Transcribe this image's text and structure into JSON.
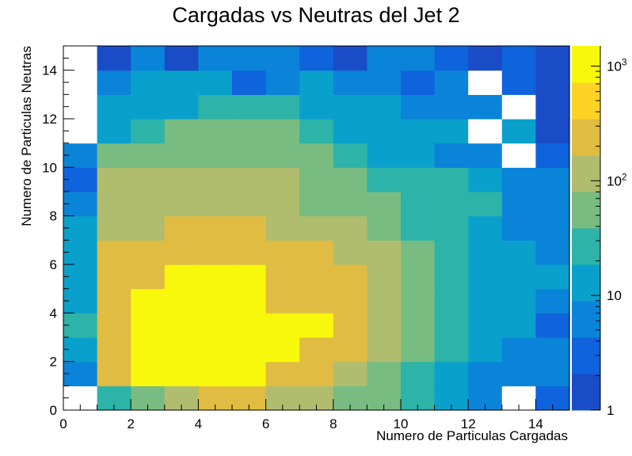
{
  "chart_data": {
    "type": "heatmap",
    "title": "Cargadas vs Neutras del Jet 2",
    "xlabel": "Numero de Particulas Cargadas",
    "ylabel": "Numero de Particulas Neutras",
    "xlim": [
      0,
      15
    ],
    "ylim": [
      0,
      15
    ],
    "x_ticks": [
      "0",
      "2",
      "4",
      "6",
      "8",
      "10",
      "12",
      "14"
    ],
    "y_ticks": [
      "0",
      "2",
      "4",
      "6",
      "8",
      "10",
      "12",
      "14"
    ],
    "color_scale": "log",
    "zlim": [
      1,
      1500
    ],
    "colorbar_ticks": [
      {
        "value": 1,
        "base": "1",
        "exp": ""
      },
      {
        "value": 10,
        "base": "10",
        "exp": ""
      },
      {
        "value": 100,
        "base": "10",
        "exp": "2"
      },
      {
        "value": 1000,
        "base": "10",
        "exp": "3"
      }
    ],
    "colors": [
      "#1a4cc8",
      "#0f63dc",
      "#0a84d8",
      "#0aa0cc",
      "#2db3a8",
      "#78bc82",
      "#b0bd6e",
      "#e0bc42",
      "#fcd324",
      "#f8f80c"
    ],
    "empty_color": "#ffffff",
    "grid": false,
    "legend": "colorbar-right",
    "values": [
      [
        0,
        30,
        70,
        160,
        300,
        300,
        150,
        150,
        70,
        40,
        20,
        15,
        5,
        0,
        3
      ],
      [
        8,
        280,
        1200,
        1200,
        1200,
        1200,
        300,
        300,
        150,
        60,
        30,
        15,
        8,
        8,
        5
      ],
      [
        10,
        300,
        1200,
        1200,
        1200,
        1200,
        1200,
        300,
        300,
        120,
        60,
        25,
        12,
        8,
        8
      ],
      [
        30,
        300,
        1200,
        1200,
        1200,
        1200,
        1200,
        1200,
        300,
        120,
        60,
        30,
        15,
        12,
        3
      ],
      [
        12,
        300,
        1200,
        1200,
        1200,
        1200,
        300,
        300,
        300,
        120,
        60,
        25,
        12,
        10,
        6
      ],
      [
        12,
        300,
        300,
        1200,
        1200,
        1200,
        300,
        300,
        300,
        120,
        60,
        30,
        15,
        12,
        10
      ],
      [
        12,
        300,
        300,
        300,
        300,
        300,
        300,
        300,
        150,
        100,
        40,
        20,
        12,
        12,
        8
      ],
      [
        12,
        150,
        150,
        300,
        300,
        300,
        150,
        150,
        100,
        60,
        30,
        20,
        12,
        8,
        8
      ],
      [
        8,
        100,
        100,
        150,
        150,
        150,
        150,
        70,
        70,
        70,
        30,
        30,
        30,
        5,
        5
      ],
      [
        4,
        100,
        100,
        100,
        100,
        100,
        100,
        70,
        70,
        30,
        20,
        25,
        10,
        5,
        8
      ],
      [
        8,
        60,
        60,
        60,
        60,
        60,
        60,
        60,
        30,
        15,
        15,
        8,
        8,
        0,
        4
      ],
      [
        0,
        15,
        30,
        60,
        60,
        60,
        60,
        30,
        15,
        15,
        10,
        10,
        0,
        10,
        2
      ],
      [
        0,
        10,
        12,
        12,
        30,
        30,
        30,
        15,
        15,
        15,
        8,
        5,
        8,
        0,
        2
      ],
      [
        0,
        8,
        15,
        15,
        15,
        4,
        8,
        12,
        8,
        8,
        4,
        8,
        0,
        3,
        2
      ],
      [
        0,
        2,
        8,
        2,
        8,
        8,
        8,
        4,
        2,
        8,
        8,
        4,
        2,
        4,
        2
      ]
    ]
  }
}
